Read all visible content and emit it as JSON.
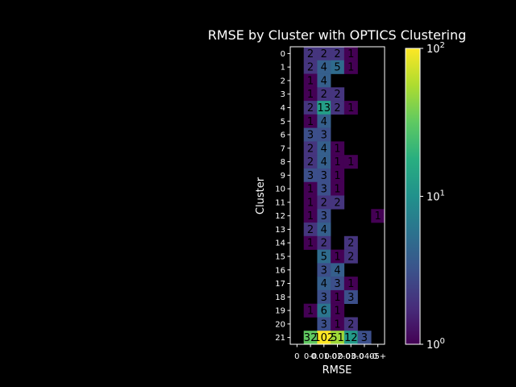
{
  "chart_data": {
    "type": "heatmap",
    "title": "RMSE by Cluster with OPTICS Clustering",
    "xlabel": "RMSE",
    "ylabel": "Cluster",
    "x_categories": [
      "0",
      "0-0.01",
      "0.01-0.02",
      "0.02-0.03",
      "0.03-0.04",
      "0.04-0.05",
      "0.05+"
    ],
    "x_tick_labels": [
      "0",
      "0-0",
      "0.01-0",
      "0.02-0",
      "0.03-0",
      "0.04-0",
      "05+"
    ],
    "y_categories": [
      "0",
      "1",
      "2",
      "3",
      "4",
      "5",
      "6",
      "7",
      "8",
      "9",
      "10",
      "11",
      "12",
      "13",
      "14",
      "15",
      "16",
      "17",
      "18",
      "19",
      "20",
      "21"
    ],
    "values": [
      [
        null,
        2,
        2,
        2,
        1,
        null,
        null
      ],
      [
        null,
        2,
        4,
        5,
        1,
        null,
        null
      ],
      [
        null,
        1,
        4,
        null,
        null,
        null,
        null
      ],
      [
        null,
        1,
        2,
        2,
        null,
        null,
        null
      ],
      [
        null,
        2,
        13,
        2,
        1,
        null,
        null
      ],
      [
        null,
        1,
        4,
        null,
        null,
        null,
        null
      ],
      [
        null,
        3,
        3,
        null,
        null,
        null,
        null
      ],
      [
        null,
        2,
        4,
        1,
        null,
        null,
        null
      ],
      [
        null,
        2,
        4,
        1,
        1,
        null,
        null
      ],
      [
        null,
        3,
        3,
        1,
        null,
        null,
        null
      ],
      [
        null,
        1,
        3,
        1,
        null,
        null,
        null
      ],
      [
        null,
        1,
        2,
        2,
        null,
        null,
        null
      ],
      [
        null,
        1,
        3,
        null,
        null,
        null,
        1
      ],
      [
        null,
        2,
        4,
        null,
        null,
        null,
        null
      ],
      [
        null,
        1,
        2,
        null,
        2,
        null,
        null
      ],
      [
        null,
        null,
        5,
        1,
        2,
        null,
        null
      ],
      [
        null,
        null,
        3,
        4,
        null,
        null,
        null
      ],
      [
        null,
        null,
        4,
        3,
        1,
        null,
        null
      ],
      [
        null,
        null,
        3,
        1,
        3,
        null,
        null
      ],
      [
        null,
        1,
        6,
        1,
        null,
        null,
        null
      ],
      [
        null,
        null,
        3,
        1,
        2,
        null,
        null
      ],
      [
        null,
        32,
        102,
        51,
        12,
        3,
        null
      ]
    ],
    "colorscale": "viridis",
    "color_scale_type": "log",
    "color_range": [
      1,
      100
    ],
    "colorbar_ticks": [
      {
        "base": "10",
        "exp": "0",
        "value": 1
      },
      {
        "base": "10",
        "exp": "1",
        "value": 10
      },
      {
        "base": "10",
        "exp": "2",
        "value": 100
      }
    ],
    "grid": false,
    "background": "#000000"
  }
}
